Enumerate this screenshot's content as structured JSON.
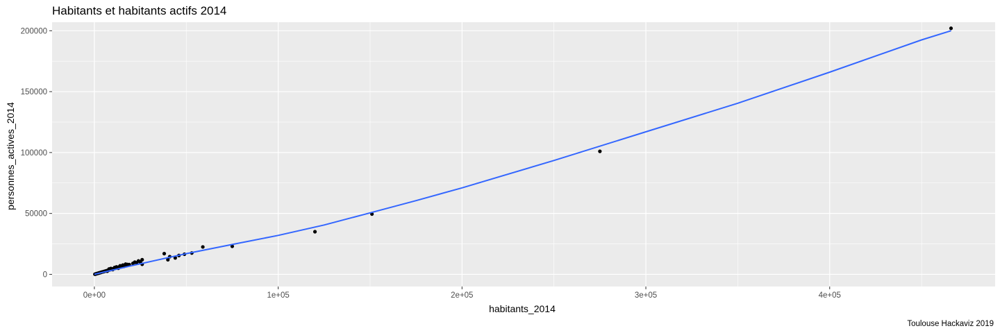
{
  "chart_data": {
    "type": "scatter",
    "title": "Habitants et habitants actifs 2014",
    "xlabel": "habitants_2014",
    "ylabel": "personnes_actives_2014",
    "caption": "Toulouse Hackaviz 2019",
    "xlim": [
      -23000,
      490000
    ],
    "ylim": [
      -10000,
      207000
    ],
    "x_ticks": [
      {
        "value": 0,
        "label": "0e+00"
      },
      {
        "value": 100000,
        "label": "1e+05"
      },
      {
        "value": 200000,
        "label": "2e+05"
      },
      {
        "value": 300000,
        "label": "3e+05"
      },
      {
        "value": 400000,
        "label": "4e+05"
      }
    ],
    "x_minor_ticks": [
      50000,
      150000,
      250000,
      350000,
      450000
    ],
    "y_ticks": [
      {
        "value": 0,
        "label": "0"
      },
      {
        "value": 50000,
        "label": "50000"
      },
      {
        "value": 100000,
        "label": "100000"
      },
      {
        "value": 150000,
        "label": "150000"
      },
      {
        "value": 200000,
        "label": "200000"
      }
    ],
    "y_minor_ticks": [
      25000,
      75000,
      125000,
      175000
    ],
    "grid": true,
    "colors": {
      "panel": "#ebebeb",
      "grid": "#ffffff",
      "point": "#000000",
      "smooth": "#3366ff"
    },
    "points": [
      {
        "x": 300,
        "y": 100
      },
      {
        "x": 600,
        "y": 250
      },
      {
        "x": 900,
        "y": 400
      },
      {
        "x": 1200,
        "y": 500
      },
      {
        "x": 1500,
        "y": 700
      },
      {
        "x": 1800,
        "y": 800
      },
      {
        "x": 2100,
        "y": 900
      },
      {
        "x": 2400,
        "y": 1100
      },
      {
        "x": 2700,
        "y": 1200
      },
      {
        "x": 3000,
        "y": 1300
      },
      {
        "x": 3300,
        "y": 1500
      },
      {
        "x": 3600,
        "y": 1600
      },
      {
        "x": 4000,
        "y": 1800
      },
      {
        "x": 4400,
        "y": 2000
      },
      {
        "x": 4800,
        "y": 2100
      },
      {
        "x": 5200,
        "y": 2300
      },
      {
        "x": 5600,
        "y": 2500
      },
      {
        "x": 6000,
        "y": 2700
      },
      {
        "x": 6500,
        "y": 2900
      },
      {
        "x": 7000,
        "y": 3100
      },
      {
        "x": 7500,
        "y": 3300
      },
      {
        "x": 8000,
        "y": 3600
      },
      {
        "x": 8500,
        "y": 3800
      },
      {
        "x": 9000,
        "y": 4000
      },
      {
        "x": 9500,
        "y": 4200
      },
      {
        "x": 10000,
        "y": 4500
      },
      {
        "x": 10500,
        "y": 4700
      },
      {
        "x": 11000,
        "y": 4900
      },
      {
        "x": 11500,
        "y": 5100
      },
      {
        "x": 12000,
        "y": 5400
      },
      {
        "x": 12500,
        "y": 5600
      },
      {
        "x": 13000,
        "y": 5800
      },
      {
        "x": 13500,
        "y": 6000
      },
      {
        "x": 14000,
        "y": 6300
      },
      {
        "x": 15000,
        "y": 6700
      },
      {
        "x": 16000,
        "y": 7200
      },
      {
        "x": 17000,
        "y": 7600
      },
      {
        "x": 18000,
        "y": 8100
      },
      {
        "x": 8000,
        "y": 4400
      },
      {
        "x": 9000,
        "y": 4800
      },
      {
        "x": 11000,
        "y": 5600
      },
      {
        "x": 12000,
        "y": 6100
      },
      {
        "x": 14000,
        "y": 7000
      },
      {
        "x": 15500,
        "y": 7600
      },
      {
        "x": 17000,
        "y": 8400
      },
      {
        "x": 7000,
        "y": 2600
      },
      {
        "x": 10000,
        "y": 3900
      },
      {
        "x": 13000,
        "y": 5000
      },
      {
        "x": 16000,
        "y": 6500
      },
      {
        "x": 19000,
        "y": 8000
      },
      {
        "x": 21000,
        "y": 9000
      },
      {
        "x": 22000,
        "y": 10000
      },
      {
        "x": 23000,
        "y": 9500
      },
      {
        "x": 24000,
        "y": 11000
      },
      {
        "x": 25000,
        "y": 10200
      },
      {
        "x": 26000,
        "y": 12000
      },
      {
        "x": 26000,
        "y": 8300
      },
      {
        "x": 38000,
        "y": 17000
      },
      {
        "x": 40000,
        "y": 12000
      },
      {
        "x": 41000,
        "y": 14500
      },
      {
        "x": 44000,
        "y": 13500
      },
      {
        "x": 46000,
        "y": 15500
      },
      {
        "x": 49000,
        "y": 16500
      },
      {
        "x": 53000,
        "y": 17500
      },
      {
        "x": 59000,
        "y": 22500
      },
      {
        "x": 75000,
        "y": 23000
      },
      {
        "x": 120000,
        "y": 35000
      },
      {
        "x": 151000,
        "y": 49500
      },
      {
        "x": 275000,
        "y": 101000
      },
      {
        "x": 466000,
        "y": 202000
      }
    ],
    "smooth_line": [
      {
        "x": 0,
        "y": 0
      },
      {
        "x": 20000,
        "y": 7000
      },
      {
        "x": 50000,
        "y": 17000
      },
      {
        "x": 75000,
        "y": 24500
      },
      {
        "x": 100000,
        "y": 32000
      },
      {
        "x": 125000,
        "y": 40500
      },
      {
        "x": 150000,
        "y": 50500
      },
      {
        "x": 175000,
        "y": 60500
      },
      {
        "x": 200000,
        "y": 71000
      },
      {
        "x": 250000,
        "y": 93500
      },
      {
        "x": 300000,
        "y": 117000
      },
      {
        "x": 350000,
        "y": 140500
      },
      {
        "x": 400000,
        "y": 166000
      },
      {
        "x": 450000,
        "y": 192500
      },
      {
        "x": 466000,
        "y": 200000
      }
    ]
  }
}
